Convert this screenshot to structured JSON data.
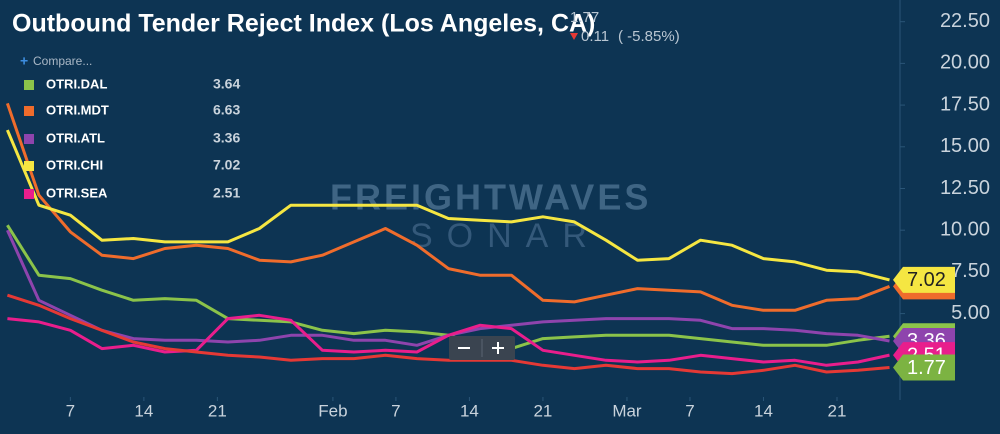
{
  "chart_data": {
    "type": "line",
    "title": "Outbound Tender Reject Index (Los Angeles, CA)",
    "latest_change": 0.11,
    "latest_change_percent": "( -5.85%)",
    "compare_label": "Compare...",
    "watermark": [
      "FREIGHTWAVES",
      "SONAR"
    ],
    "x": [
      1,
      4,
      7,
      10,
      13,
      16,
      19,
      22,
      25,
      28,
      31,
      34,
      37,
      40,
      43,
      46,
      49,
      52,
      55,
      58,
      61,
      64,
      67,
      70,
      73,
      76,
      79,
      82,
      85
    ],
    "xlim": [
      0.3,
      86
    ],
    "xticks": [
      {
        "value": 7,
        "label": "7"
      },
      {
        "value": 14,
        "label": "14"
      },
      {
        "value": 21,
        "label": "21"
      },
      {
        "value": 32,
        "label": "Feb"
      },
      {
        "value": 38,
        "label": "7"
      },
      {
        "value": 45,
        "label": "14"
      },
      {
        "value": 52,
        "label": "21"
      },
      {
        "value": 60,
        "label": "Mar"
      },
      {
        "value": 66,
        "label": "7"
      },
      {
        "value": 73,
        "label": "14"
      },
      {
        "value": 80,
        "label": "21"
      }
    ],
    "ylim": [
      0,
      23.8
    ],
    "yticks": [
      {
        "value": 5,
        "label": "5.00"
      },
      {
        "value": 7.5,
        "label": "7.50"
      },
      {
        "value": 10,
        "label": "10.00"
      },
      {
        "value": 12.5,
        "label": "12.50"
      },
      {
        "value": 15,
        "label": "15.00"
      },
      {
        "value": 17.5,
        "label": "17.50"
      },
      {
        "value": 20,
        "label": "20.00"
      },
      {
        "value": 22.5,
        "label": "22.50"
      }
    ],
    "main_color": "#e53935",
    "main_badge_color": "#7cb342",
    "main_values": [
      6.1,
      5.5,
      4.7,
      4.0,
      3.3,
      2.9,
      2.7,
      2.5,
      2.4,
      2.2,
      2.3,
      2.3,
      2.5,
      2.3,
      2.2,
      2.2,
      2.2,
      1.9,
      1.7,
      1.9,
      1.7,
      1.7,
      1.5,
      1.4,
      1.6,
      1.9,
      1.5,
      1.6,
      1.77
    ],
    "series": [
      {
        "name": "OTRI.DAL",
        "color": "#8bc34a",
        "values": [
          10.3,
          7.3,
          7.1,
          6.4,
          5.8,
          5.9,
          5.8,
          4.7,
          4.6,
          4.5,
          4.0,
          3.8,
          4.0,
          3.9,
          3.7,
          3.1,
          2.9,
          3.5,
          3.6,
          3.7,
          3.7,
          3.7,
          3.5,
          3.3,
          3.1,
          3.1,
          3.1,
          3.4,
          3.64
        ]
      },
      {
        "name": "OTRI.MDT",
        "color": "#ef6c2c",
        "values": [
          17.6,
          12.1,
          9.9,
          8.5,
          8.3,
          8.9,
          9.1,
          8.9,
          8.2,
          8.1,
          8.5,
          9.3,
          10.1,
          9.1,
          7.7,
          7.3,
          7.3,
          5.8,
          5.7,
          6.1,
          6.5,
          6.4,
          6.3,
          5.5,
          5.2,
          5.2,
          5.8,
          5.9,
          6.63
        ]
      },
      {
        "name": "OTRI.ATL",
        "color": "#8e44ad",
        "values": [
          10.0,
          5.8,
          4.9,
          4.0,
          3.5,
          3.4,
          3.4,
          3.3,
          3.4,
          3.7,
          3.7,
          3.4,
          3.4,
          3.1,
          3.7,
          4.1,
          4.3,
          4.5,
          4.6,
          4.7,
          4.7,
          4.7,
          4.6,
          4.1,
          4.1,
          4.0,
          3.8,
          3.7,
          3.36
        ]
      },
      {
        "name": "OTRI.CHI",
        "color": "#f5e642",
        "values": [
          16.0,
          11.5,
          10.9,
          9.4,
          9.5,
          9.3,
          9.3,
          9.3,
          10.1,
          11.5,
          11.5,
          11.5,
          11.5,
          11.5,
          10.7,
          10.6,
          10.5,
          10.8,
          10.5,
          9.4,
          8.2,
          8.3,
          9.4,
          9.1,
          8.3,
          8.1,
          7.6,
          7.5,
          7.02
        ]
      },
      {
        "name": "OTRI.SEA",
        "color": "#e91e8c",
        "values": [
          4.7,
          4.5,
          4.0,
          2.9,
          3.1,
          2.7,
          2.8,
          4.7,
          4.9,
          4.6,
          2.8,
          2.7,
          2.8,
          2.7,
          3.7,
          4.3,
          4.1,
          2.8,
          2.5,
          2.2,
          2.1,
          2.2,
          2.5,
          2.3,
          2.1,
          2.2,
          1.9,
          2.1,
          2.51
        ]
      }
    ]
  }
}
